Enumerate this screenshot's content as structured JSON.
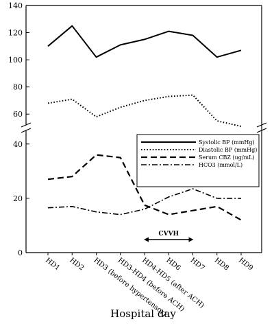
{
  "chart_data": {
    "type": "line",
    "xlabel": "Hospital day",
    "ylabel": "",
    "categories": [
      "HD1",
      "HD2",
      "HD3 (before hypertensor)",
      "HD3-HD4 (before ACH)",
      "HD4-HD5 (after ACH)",
      "HD6",
      "HD7",
      "HD8",
      "HD9"
    ],
    "axis_break": {
      "lower_range": [
        0,
        45
      ],
      "upper_range": [
        50,
        140
      ]
    },
    "yticks_upper": [
      60,
      80,
      100,
      120,
      140
    ],
    "yticks_lower": [
      0,
      20,
      40
    ],
    "legend_position": "center-right",
    "series": [
      {
        "name": "Systolic BP (mmHg)",
        "style": "solid",
        "panel": "upper",
        "values": [
          110,
          125,
          102,
          111,
          115,
          121,
          118,
          102,
          107
        ]
      },
      {
        "name": "Diastolic BP (mmHg)",
        "style": "dotted",
        "panel": "upper",
        "values": [
          68,
          71,
          58,
          65,
          70,
          73,
          74,
          55,
          51
        ]
      },
      {
        "name": "Serum CBZ (ug/mL)",
        "style": "dashed",
        "panel": "lower",
        "values": [
          27,
          28,
          36,
          35,
          17.5,
          14,
          15.5,
          17,
          12
        ]
      },
      {
        "name": "HCO3 (mmol/L)",
        "style": "dashdot",
        "panel": "lower",
        "values": [
          16.5,
          17,
          15,
          14,
          16,
          20.5,
          23.5,
          20,
          20
        ]
      }
    ],
    "annotations": [
      {
        "text": "CVVH",
        "from_category": "HD4-HD5 (after ACH)",
        "to_category": "HD7"
      }
    ]
  }
}
